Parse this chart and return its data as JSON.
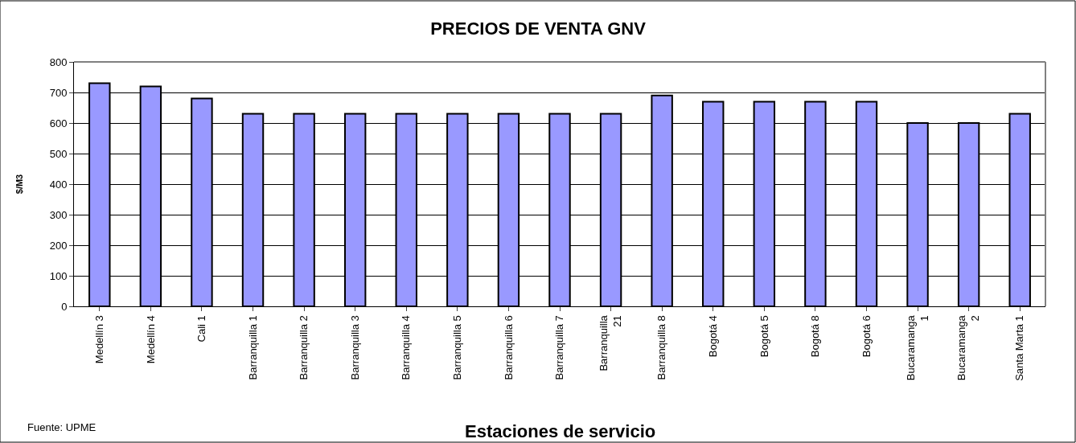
{
  "chart_data": {
    "type": "bar",
    "title": "PRECIOS DE VENTA GNV",
    "xlabel": "Estaciones de servicio",
    "ylabel": "$/M3",
    "categories": [
      "Medellín 3",
      "Medellín 4",
      "Cali 1",
      "Barranquilla 1",
      "Barranquilla 2",
      "Barranquilla 3",
      "Barranquilla 4",
      "Barranquilla 5",
      "Barranquilla 6",
      "Barranquilla 7",
      "Barranquilla\n21",
      "Barranquilla 8",
      "Bogotá 4",
      "Bogotá 5",
      "Bogotá 8",
      "Bogotá 6",
      "Bucaramanga\n1",
      "Bucaramanga\n2",
      "Santa Marta 1"
    ],
    "values": [
      730,
      720,
      680,
      630,
      630,
      630,
      630,
      630,
      630,
      630,
      630,
      690,
      670,
      670,
      670,
      670,
      600,
      600,
      630
    ],
    "color": "#9999ff",
    "ylim": [
      0,
      800
    ],
    "yticks": [
      0,
      100,
      200,
      300,
      400,
      500,
      600,
      700,
      800
    ],
    "grid": "y",
    "annotations": [
      "Fuente: UPME"
    ]
  }
}
